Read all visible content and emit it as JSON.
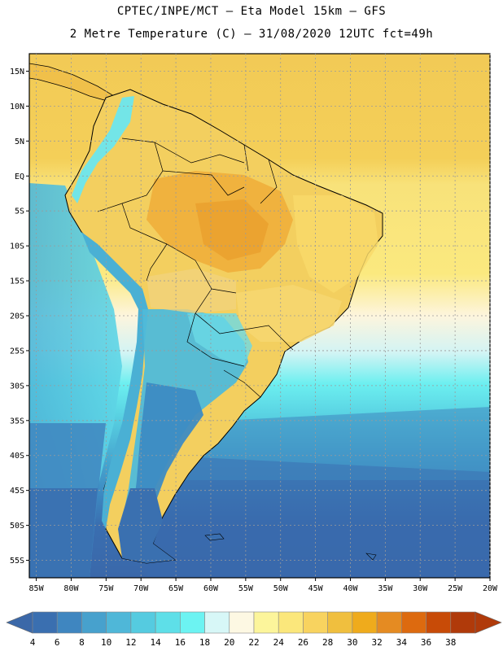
{
  "header": {
    "line1": "CPTEC/INPE/MCT –  Eta Model 15km – GFS",
    "line2": "2 Metre Temperature (C) – 31/08/2020 12UTC fct=49h"
  },
  "map": {
    "lat_ticks": [
      "15N",
      "10N",
      "5N",
      "EQ",
      "5S",
      "10S",
      "15S",
      "20S",
      "25S",
      "30S",
      "35S",
      "40S",
      "45S",
      "50S",
      "55S"
    ],
    "lon_ticks": [
      "85W",
      "80W",
      "75W",
      "70W",
      "65W",
      "60W",
      "55W",
      "50W",
      "45W",
      "40W",
      "35W",
      "30W",
      "25W",
      "20W"
    ],
    "lat_range": [
      17.5,
      -57.5
    ],
    "lon_range": [
      -86,
      -20
    ]
  },
  "colorbar": {
    "labels": [
      "4",
      "6",
      "8",
      "10",
      "12",
      "14",
      "16",
      "18",
      "20",
      "22",
      "24",
      "26",
      "28",
      "30",
      "32",
      "34",
      "36",
      "38"
    ],
    "colors": [
      "#3a6fb0",
      "#3f86c0",
      "#47a1cd",
      "#4fb7d8",
      "#55cbe0",
      "#5edfe8",
      "#6cf3f2",
      "#d7f7f7",
      "#fdf8e3",
      "#fcf59b",
      "#fbe77b",
      "#f8d35f",
      "#f0bf3e",
      "#efab1c",
      "#e58b22",
      "#dd6a0f",
      "#c84b07",
      "#b03a0a"
    ],
    "under_color": "#3b68a8",
    "over_color": "#b03a0a"
  }
}
